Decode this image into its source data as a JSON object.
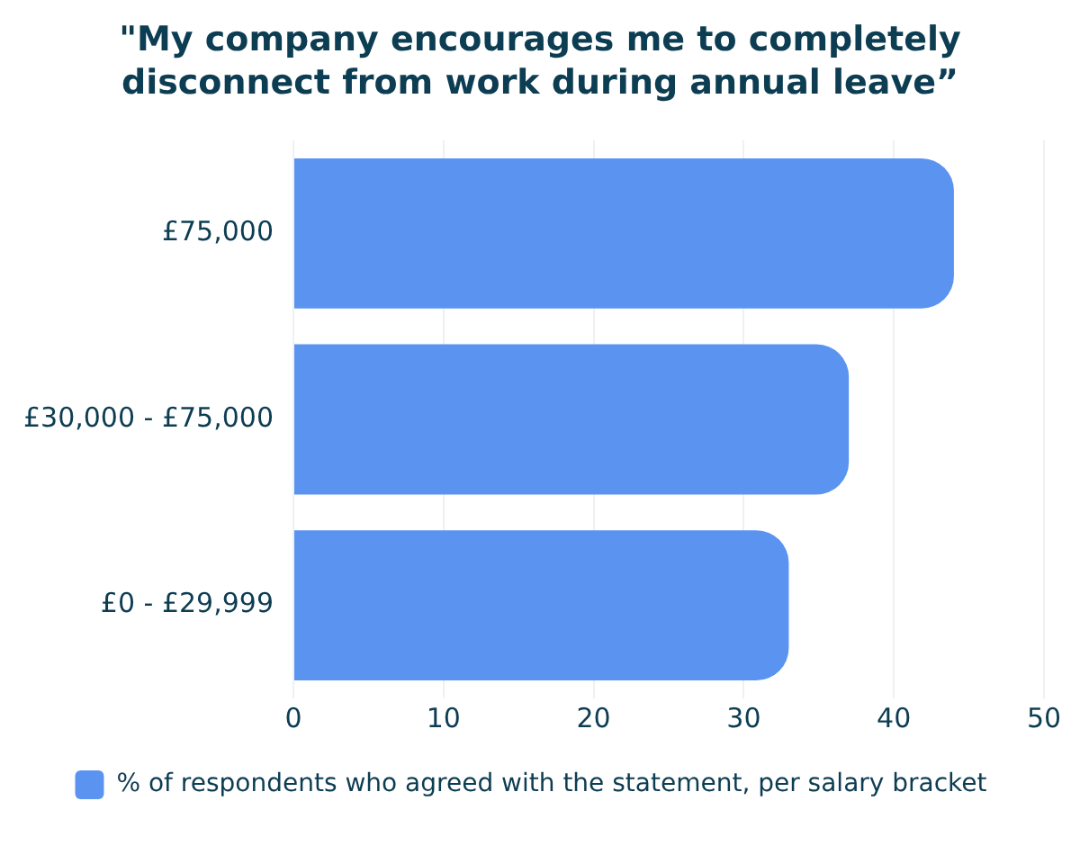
{
  "chart_data": {
    "type": "bar",
    "orientation": "horizontal",
    "title": "\"My company encourages me to completely disconnect from work during annual leave”",
    "categories": [
      "£75,000",
      "£30,000 - £75,000",
      "£0 - £29,999"
    ],
    "series": [
      {
        "name": "% of respondents who agreed with the statement, per salary bracket",
        "color": "#5b94f0",
        "values": [
          44,
          37,
          33
        ]
      }
    ],
    "xlim": [
      0,
      50
    ],
    "xticks": [
      0,
      10,
      20,
      30,
      40,
      50
    ],
    "grid": "x",
    "legend": "bottom"
  }
}
